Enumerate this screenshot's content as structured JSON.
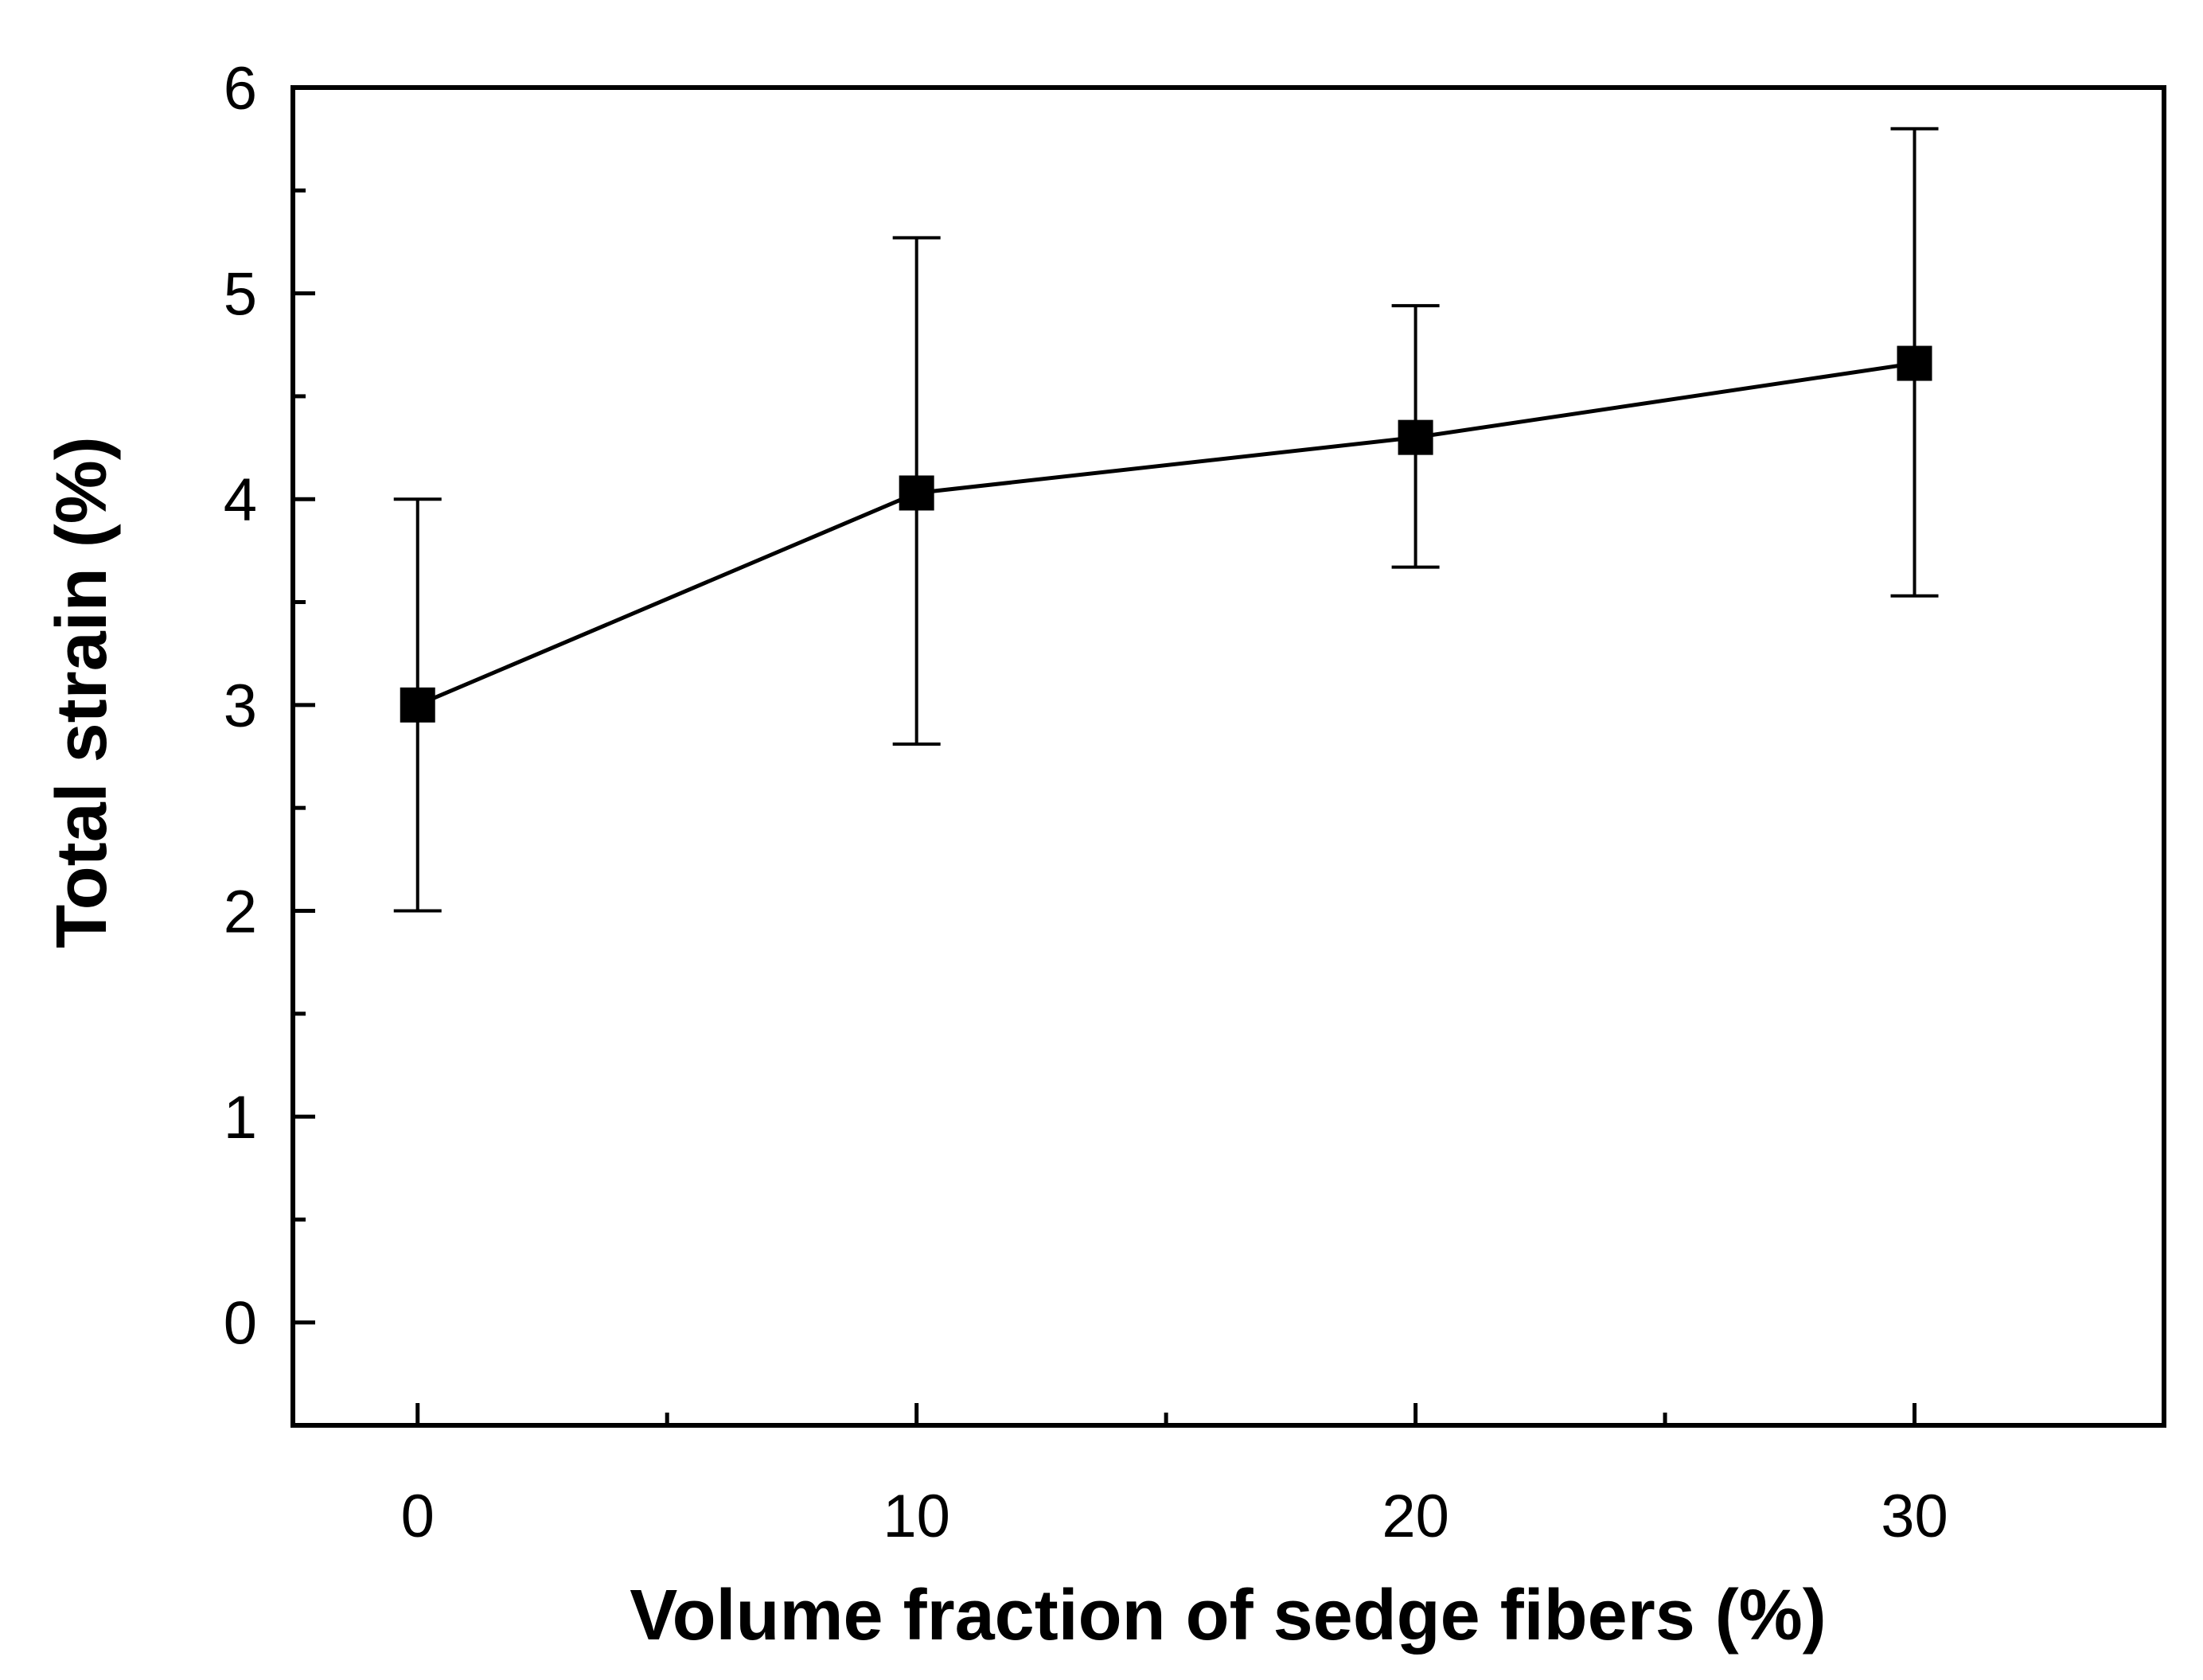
{
  "chart_data": {
    "type": "line",
    "title": "",
    "xlabel": "Volume fraction of sedge fibers (%)",
    "ylabel": "Total strain (%)",
    "xlim": [
      -2.5,
      35
    ],
    "ylim": [
      -0.5,
      6
    ],
    "x_ticks": [
      0,
      10,
      20,
      30
    ],
    "x_tick_labels": [
      "0",
      "10",
      "20",
      "30"
    ],
    "x_minor_ticks": [
      5,
      15,
      25
    ],
    "y_ticks": [
      0,
      1,
      2,
      3,
      4,
      5,
      6
    ],
    "y_tick_labels": [
      "0",
      "1",
      "2",
      "3",
      "4",
      "5",
      "6"
    ],
    "y_minor_ticks": [
      0.5,
      1.5,
      2.5,
      3.5,
      4.5,
      5.5
    ],
    "grid": false,
    "legend": null,
    "series": [
      {
        "name": "Total strain",
        "marker": "square",
        "color": "#000000",
        "x": [
          0,
          10,
          20,
          30
        ],
        "y": [
          3.0,
          4.03,
          4.3,
          4.66
        ],
        "err_low": [
          2.0,
          2.81,
          3.67,
          3.53
        ],
        "err_high": [
          4.0,
          5.27,
          4.94,
          5.8
        ]
      }
    ]
  }
}
